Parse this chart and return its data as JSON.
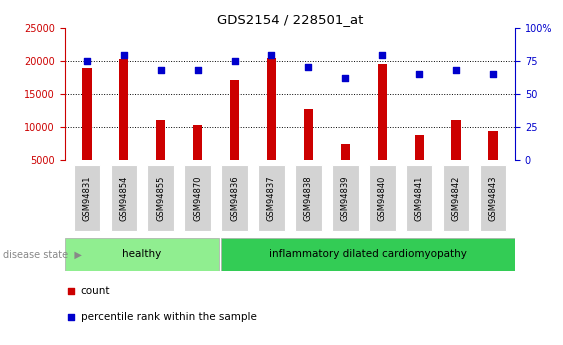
{
  "title": "GDS2154 / 228501_at",
  "samples": [
    "GSM94831",
    "GSM94854",
    "GSM94855",
    "GSM94870",
    "GSM94836",
    "GSM94837",
    "GSM94838",
    "GSM94839",
    "GSM94840",
    "GSM94841",
    "GSM94842",
    "GSM94843"
  ],
  "counts": [
    18900,
    20300,
    11100,
    10400,
    17100,
    20400,
    12700,
    7500,
    19500,
    8800,
    11100,
    9400
  ],
  "percentiles": [
    75,
    79,
    68,
    68,
    75,
    79,
    70,
    62,
    79,
    65,
    68,
    65
  ],
  "healthy_count": 4,
  "bar_color": "#cc0000",
  "dot_color": "#0000cc",
  "ylim_left": [
    5000,
    25000
  ],
  "ylim_right": [
    0,
    100
  ],
  "yticks_left": [
    5000,
    10000,
    15000,
    20000,
    25000
  ],
  "yticks_right": [
    0,
    25,
    50,
    75,
    100
  ],
  "yticklabels_right": [
    "0",
    "25",
    "50",
    "75",
    "100%"
  ],
  "healthy_color": "#90ee90",
  "idc_color": "#33cc55",
  "group_label_healthy": "healthy",
  "group_label_idc": "inflammatory dilated cardiomyopathy",
  "disease_state_label": "disease state",
  "legend_count": "count",
  "legend_percentile": "percentile rank within the sample",
  "tick_bg_color": "#d3d3d3",
  "background_color": "#ffffff",
  "left_axis_color": "#cc0000",
  "right_axis_color": "#0000cc",
  "dotted_lines": [
    10000,
    15000,
    20000
  ],
  "bar_width": 0.25
}
